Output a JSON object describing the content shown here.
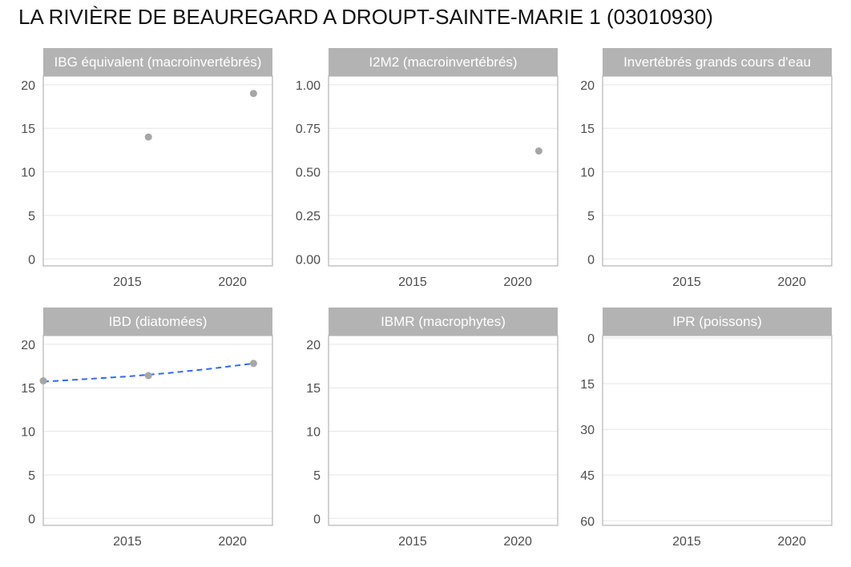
{
  "page": {
    "title": "LA RIVIÈRE DE BEAUREGARD A DROUPT-SAINTE-MARIE 1 (03010930)"
  },
  "colors": {
    "point": "#a6a6a6",
    "trend": "#3366ff",
    "strip": "#b3b3b3",
    "grid": "#e5e5e5",
    "border": "#b3b3b3",
    "text": "#4d4d4d"
  },
  "chart_data": [
    {
      "type": "scatter",
      "panel": "IBG équivalent (macroinvertébrés)",
      "xlim": [
        2011,
        2021.9
      ],
      "x_ticks": [
        2015,
        2020
      ],
      "ylim": [
        -0.8,
        21
      ],
      "y_ticks": [
        0,
        5,
        10,
        15,
        20
      ],
      "y_tick_labels": [
        "0",
        "5",
        "10",
        "15",
        "20"
      ],
      "y_reversed": false,
      "points": [
        {
          "x": 2016,
          "y": 14
        },
        {
          "x": 2021,
          "y": 19
        }
      ],
      "trend": []
    },
    {
      "type": "scatter",
      "panel": "I2M2 (macroinvertébrés)",
      "xlim": [
        2011,
        2021.9
      ],
      "x_ticks": [
        2015,
        2020
      ],
      "ylim": [
        -0.04,
        1.05
      ],
      "y_ticks": [
        0,
        0.25,
        0.5,
        0.75,
        1
      ],
      "y_tick_labels": [
        "0.00",
        "0.25",
        "0.50",
        "0.75",
        "1.00"
      ],
      "y_reversed": false,
      "points": [
        {
          "x": 2021,
          "y": 0.62
        }
      ],
      "trend": []
    },
    {
      "type": "scatter",
      "panel": "Invertébrés grands cours d'eau",
      "xlim": [
        2011,
        2021.9
      ],
      "x_ticks": [
        2015,
        2020
      ],
      "ylim": [
        -0.8,
        21
      ],
      "y_ticks": [
        0,
        5,
        10,
        15,
        20
      ],
      "y_tick_labels": [
        "0",
        "5",
        "10",
        "15",
        "20"
      ],
      "y_reversed": false,
      "points": [],
      "trend": []
    },
    {
      "type": "scatter",
      "panel": "IBD (diatomées)",
      "xlim": [
        2011,
        2021.9
      ],
      "x_ticks": [
        2015,
        2020
      ],
      "ylim": [
        -0.8,
        21
      ],
      "y_ticks": [
        0,
        5,
        10,
        15,
        20
      ],
      "y_tick_labels": [
        "0",
        "5",
        "10",
        "15",
        "20"
      ],
      "y_reversed": false,
      "points": [
        {
          "x": 2011,
          "y": 15.8
        },
        {
          "x": 2016,
          "y": 16.4
        },
        {
          "x": 2021,
          "y": 17.8
        }
      ],
      "trend": [
        {
          "x": 2011,
          "y": 15.7
        },
        {
          "x": 2013,
          "y": 16.0
        },
        {
          "x": 2015,
          "y": 16.3
        },
        {
          "x": 2017,
          "y": 16.7
        },
        {
          "x": 2019,
          "y": 17.2
        },
        {
          "x": 2021,
          "y": 17.8
        }
      ]
    },
    {
      "type": "scatter",
      "panel": "IBMR (macrophytes)",
      "xlim": [
        2011,
        2021.9
      ],
      "x_ticks": [
        2015,
        2020
      ],
      "ylim": [
        -0.8,
        21
      ],
      "y_ticks": [
        0,
        5,
        10,
        15,
        20
      ],
      "y_tick_labels": [
        "0",
        "5",
        "10",
        "15",
        "20"
      ],
      "y_reversed": false,
      "points": [],
      "trend": []
    },
    {
      "type": "scatter",
      "panel": "IPR (poissons)",
      "xlim": [
        2011,
        2021.9
      ],
      "x_ticks": [
        2015,
        2020
      ],
      "ylim": [
        -0.8,
        61.5
      ],
      "y_ticks": [
        0,
        15,
        30,
        45,
        60
      ],
      "y_tick_labels": [
        "0",
        "15",
        "30",
        "45",
        "60"
      ],
      "y_reversed": true,
      "points": [],
      "trend": []
    }
  ]
}
